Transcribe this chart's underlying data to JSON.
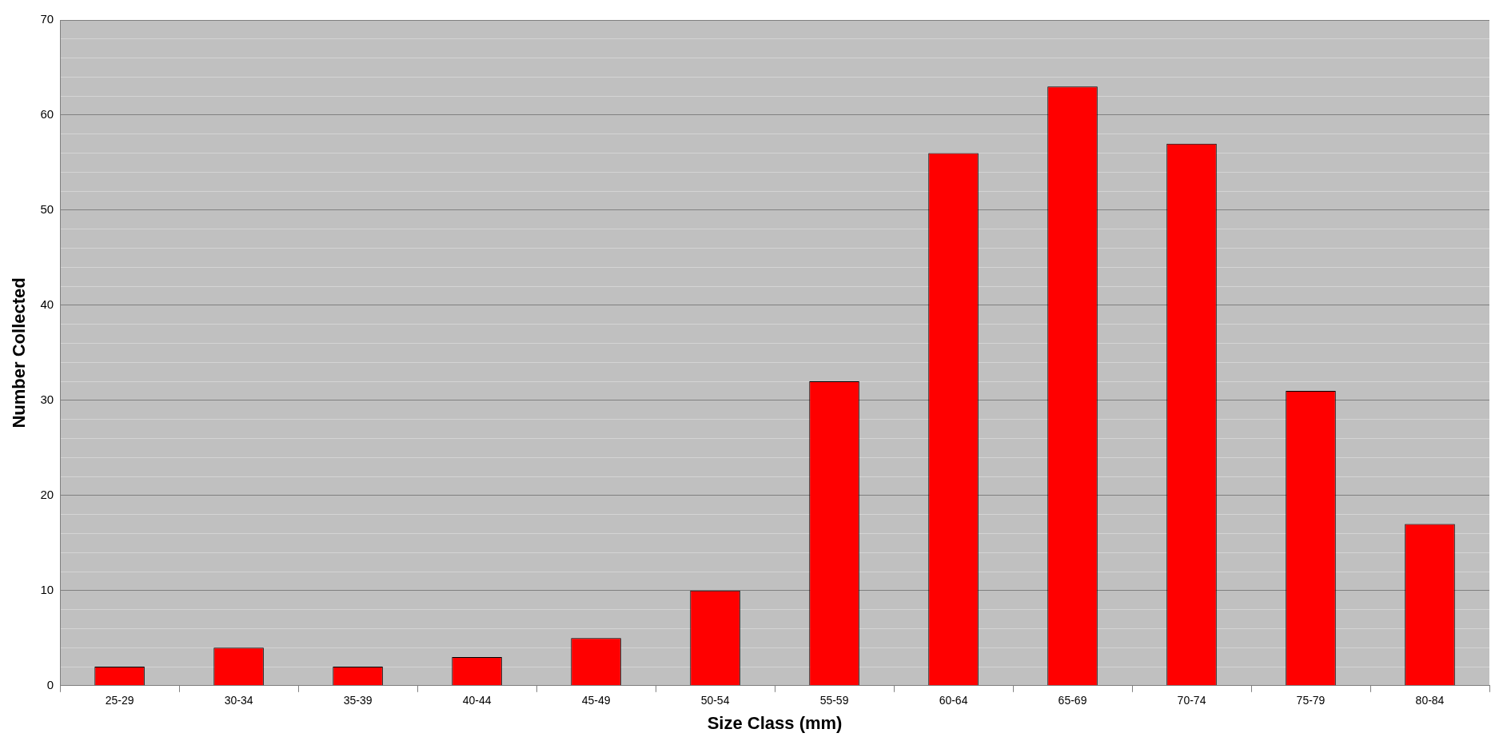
{
  "chart_data": {
    "type": "bar",
    "xlabel": "Size Class (mm)",
    "ylabel": "Number Collected",
    "categories": [
      "25-29",
      "30-34",
      "35-39",
      "40-44",
      "45-49",
      "50-54",
      "55-59",
      "60-64",
      "65-69",
      "70-74",
      "75-79",
      "80-84"
    ],
    "values": [
      2,
      4,
      2,
      3,
      5,
      10,
      32,
      56,
      63,
      57,
      31,
      17
    ],
    "color": "#ff0000",
    "ylim": [
      0,
      70
    ],
    "yticks": [
      0,
      {
        "value": 2,
        "label": null
      },
      {
        "value": 4,
        "label": null
      },
      {
        "value": 6,
        "label": null
      },
      {
        "value": 8,
        "label": null
      },
      10,
      {
        "value": 12,
        "label": null
      },
      {
        "value": 14,
        "label": null
      },
      {
        "value": 16,
        "label": null
      },
      {
        "value": 18,
        "label": null
      },
      20,
      {
        "value": 22,
        "label": null
      },
      {
        "value": 24,
        "label": null
      },
      {
        "value": 26,
        "label": null
      },
      {
        "value": 28,
        "label": null
      },
      30,
      {
        "value": 32,
        "label": null
      },
      {
        "value": 34,
        "label": null
      },
      {
        "value": 36,
        "label": null
      },
      {
        "value": 38,
        "label": null
      },
      40,
      {
        "value": 42,
        "label": null
      },
      {
        "value": 44,
        "label": null
      },
      {
        "value": 46,
        "label": null
      },
      {
        "value": 48,
        "label": null
      },
      50,
      {
        "value": 52,
        "label": null
      },
      {
        "value": 54,
        "label": null
      },
      {
        "value": 56,
        "label": null
      },
      {
        "value": 58,
        "label": null
      },
      60,
      {
        "value": 62,
        "label": null
      },
      {
        "value": 64,
        "label": null
      },
      {
        "value": 66,
        "label": null
      },
      {
        "value": 68,
        "label": null
      },
      70
    ],
    "grid": "y",
    "legend": false
  }
}
